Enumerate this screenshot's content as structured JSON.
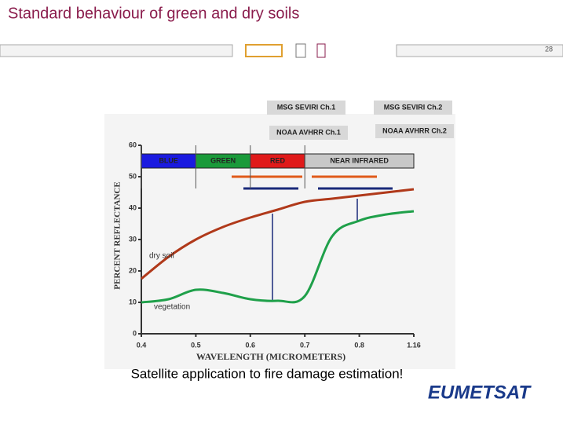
{
  "header": {
    "title": "Standard behaviour of green and dry soils",
    "page_number": "28"
  },
  "chart_data": {
    "type": "line",
    "ylabel": "PERCENT REFLECTANCE",
    "xlabel": "WAVELENGTH (MICROMETERS)",
    "categories": [
      "0.4",
      null,
      "0.5",
      null,
      "0.6",
      null,
      "0.7",
      null,
      "0.8",
      null,
      "1.16"
    ],
    "series": [
      {
        "name": "dry soil",
        "color": "#b0391a",
        "values": [
          17.5,
          24.5,
          30,
          34,
          37,
          39.5,
          42,
          43,
          44,
          45,
          46
        ]
      },
      {
        "name": "vegetation",
        "color": "#1fa04a",
        "values": [
          10,
          11,
          14,
          13,
          11,
          10.5,
          12,
          31,
          36,
          38,
          39
        ]
      }
    ],
    "ylim": [
      0,
      60
    ],
    "yticks": [
      0,
      10,
      20,
      30,
      40,
      50,
      60
    ],
    "bands": [
      "BLUE",
      "GREEN",
      "RED",
      "NEAR INFRARED"
    ],
    "channels": [
      "MSG SEVIRI Ch.1",
      "MSG SEVIRI Ch.2",
      "NOAA AVHRR Ch.1",
      "NOAA AVHRR Ch.2"
    ]
  },
  "caption": "Satellite application to fire damage estimation!",
  "logo": "EUMETSAT"
}
